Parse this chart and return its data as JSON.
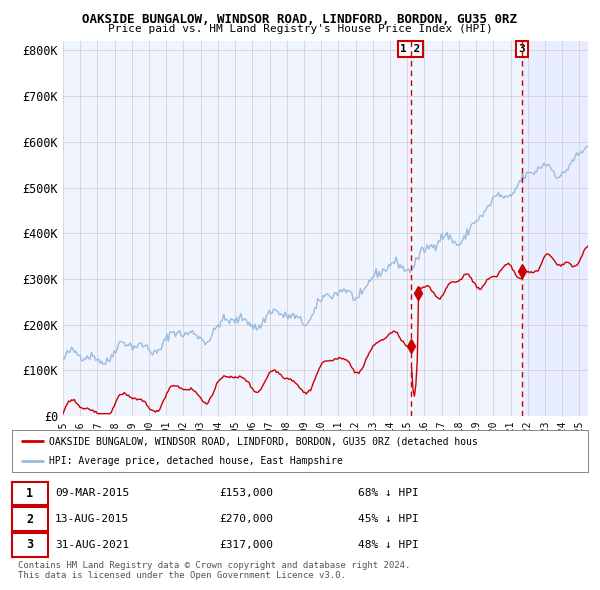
{
  "title1": "OAKSIDE BUNGALOW, WINDSOR ROAD, LINDFORD, BORDON, GU35 0RZ",
  "title2": "Price paid vs. HM Land Registry's House Price Index (HPI)",
  "legend_red": "OAKSIDE BUNGALOW, WINDSOR ROAD, LINDFORD, BORDON, GU35 0RZ (detached hous",
  "legend_blue": "HPI: Average price, detached house, East Hampshire",
  "transactions": [
    {
      "num": 1,
      "date": "09-MAR-2015",
      "price": 153000,
      "hpi_pct": "68% ↓ HPI",
      "x": 2015.19
    },
    {
      "num": 2,
      "date": "13-AUG-2015",
      "price": 270000,
      "hpi_pct": "45% ↓ HPI",
      "x": 2015.62
    },
    {
      "num": 3,
      "date": "31-AUG-2021",
      "price": 317000,
      "hpi_pct": "48% ↓ HPI",
      "x": 2021.66
    }
  ],
  "vline_x12": 2015.19,
  "vline_x3": 2021.66,
  "ylim": [
    0,
    820000
  ],
  "xlim_start": 1995.0,
  "xlim_end": 2025.5,
  "yticks": [
    0,
    100000,
    200000,
    300000,
    400000,
    500000,
    600000,
    700000,
    800000
  ],
  "ytick_labels": [
    "£0",
    "£100K",
    "£200K",
    "£300K",
    "£400K",
    "£500K",
    "£600K",
    "£700K",
    "£800K"
  ],
  "xtick_years": [
    1995,
    1996,
    1997,
    1998,
    1999,
    2000,
    2001,
    2002,
    2003,
    2004,
    2005,
    2006,
    2007,
    2008,
    2009,
    2010,
    2011,
    2012,
    2013,
    2014,
    2015,
    2016,
    2017,
    2018,
    2019,
    2020,
    2021,
    2022,
    2023,
    2024,
    2025
  ],
  "bg_chart": "#f0f4ff",
  "bg_highlight": "#e8eeff",
  "color_red": "#cc0000",
  "color_blue": "#99bbdd",
  "grid_color": "#cccccc",
  "footer": "Contains HM Land Registry data © Crown copyright and database right 2024.\nThis data is licensed under the Open Government Licence v3.0."
}
